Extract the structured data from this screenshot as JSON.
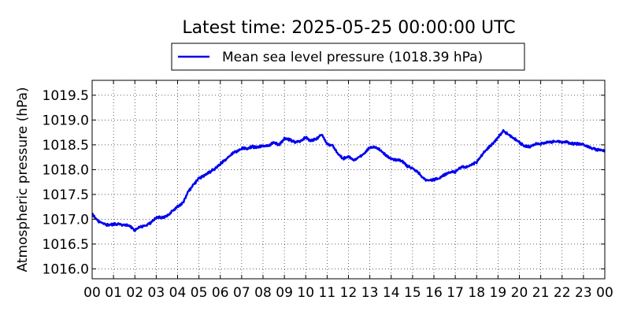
{
  "chart_data": {
    "type": "line",
    "title": "Latest time: 2025-05-25 00:00:00 UTC",
    "ylabel": "Atmospheric pressure (hPa)",
    "xlabel": "",
    "xlim": [
      0,
      24
    ],
    "ylim": [
      1015.8,
      1019.8
    ],
    "x_tick_labels": [
      "00",
      "01",
      "02",
      "03",
      "04",
      "05",
      "06",
      "07",
      "08",
      "09",
      "10",
      "11",
      "12",
      "13",
      "14",
      "15",
      "16",
      "17",
      "18",
      "19",
      "20",
      "21",
      "22",
      "23",
      "00"
    ],
    "y_ticks": [
      1016.0,
      1016.5,
      1017.0,
      1017.5,
      1018.0,
      1018.5,
      1019.0,
      1019.5
    ],
    "y_tick_labels": [
      "1016.0",
      "1016.5",
      "1017.0",
      "1017.5",
      "1018.0",
      "1018.5",
      "1019.0",
      "1019.5"
    ],
    "grid": true,
    "legend_position": "top-center",
    "series": [
      {
        "name": "Mean sea level pressure (1018.39 hPa)",
        "color": "#0000ee",
        "x": [
          0,
          0.25,
          0.5,
          0.75,
          1.0,
          1.25,
          1.5,
          1.75,
          2.0,
          2.25,
          2.5,
          2.75,
          3.0,
          3.25,
          3.5,
          3.75,
          4.0,
          4.25,
          4.5,
          4.75,
          5.0,
          5.25,
          5.5,
          5.75,
          6.0,
          6.25,
          6.5,
          6.75,
          7.0,
          7.25,
          7.5,
          7.75,
          8.0,
          8.25,
          8.5,
          8.75,
          9.0,
          9.25,
          9.5,
          9.75,
          10.0,
          10.25,
          10.5,
          10.75,
          11.0,
          11.25,
          11.5,
          11.75,
          12.0,
          12.25,
          12.5,
          12.75,
          13.0,
          13.25,
          13.5,
          13.75,
          14.0,
          14.25,
          14.5,
          14.75,
          15.0,
          15.25,
          15.5,
          15.75,
          16.0,
          16.25,
          16.5,
          16.75,
          17.0,
          17.25,
          17.5,
          17.75,
          18.0,
          18.25,
          18.5,
          18.75,
          19.0,
          19.25,
          19.5,
          19.75,
          20.0,
          20.25,
          20.5,
          20.75,
          21.0,
          21.25,
          21.5,
          21.75,
          22.0,
          22.25,
          22.5,
          22.75,
          23.0,
          23.25,
          23.5,
          23.75,
          24.0
        ],
        "y": [
          1017.12,
          1016.97,
          1016.92,
          1016.88,
          1016.9,
          1016.9,
          1016.88,
          1016.87,
          1016.78,
          1016.85,
          1016.87,
          1016.93,
          1017.03,
          1017.04,
          1017.06,
          1017.16,
          1017.25,
          1017.33,
          1017.55,
          1017.7,
          1017.82,
          1017.88,
          1017.95,
          1018.02,
          1018.12,
          1018.2,
          1018.3,
          1018.37,
          1018.43,
          1018.42,
          1018.46,
          1018.45,
          1018.48,
          1018.48,
          1018.55,
          1018.5,
          1018.62,
          1018.6,
          1018.55,
          1018.58,
          1018.65,
          1018.58,
          1018.62,
          1018.72,
          1018.52,
          1018.48,
          1018.32,
          1018.22,
          1018.27,
          1018.18,
          1018.25,
          1018.33,
          1018.45,
          1018.45,
          1018.4,
          1018.28,
          1018.22,
          1018.2,
          1018.18,
          1018.07,
          1018.02,
          1017.95,
          1017.82,
          1017.78,
          1017.8,
          1017.82,
          1017.9,
          1017.95,
          1017.95,
          1018.05,
          1018.05,
          1018.1,
          1018.15,
          1018.3,
          1018.42,
          1018.52,
          1018.65,
          1018.78,
          1018.7,
          1018.63,
          1018.55,
          1018.47,
          1018.47,
          1018.52,
          1018.52,
          1018.55,
          1018.55,
          1018.58,
          1018.55,
          1018.55,
          1018.52,
          1018.52,
          1018.5,
          1018.45,
          1018.42,
          1018.39,
          1018.39
        ]
      }
    ]
  }
}
